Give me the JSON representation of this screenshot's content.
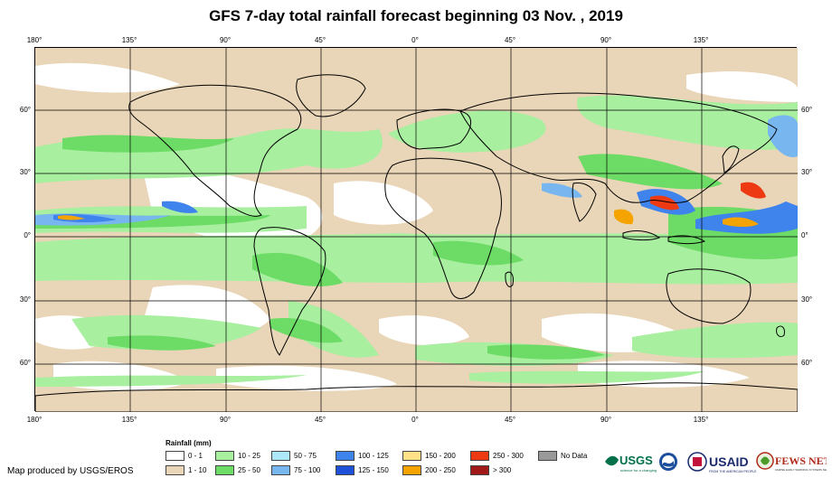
{
  "title": "GFS 7-day total rainfall forecast beginning 03 Nov. , 2019",
  "map": {
    "lon_labels_top": [
      "180°",
      "135°",
      "90°",
      "45°",
      "0°",
      "45°",
      "90°",
      "135°"
    ],
    "lon_labels_bottom": [
      "180°",
      "135°",
      "90°",
      "45°",
      "0°",
      "45°",
      "90°",
      "135°"
    ],
    "lat_labels_left": [
      "60°",
      "30°",
      "0°",
      "30°",
      "60°"
    ],
    "lat_labels_right": [
      "60°",
      "30°",
      "0°",
      "30°",
      "60°"
    ]
  },
  "legend": {
    "title": "Rainfall (mm)",
    "items": [
      {
        "label": "0 - 1",
        "color": "#ffffff"
      },
      {
        "label": "1 - 10",
        "color": "#e9d5b7"
      },
      {
        "label": "10 - 25",
        "color": "#a8efa0"
      },
      {
        "label": "25 - 50",
        "color": "#6ddc66"
      },
      {
        "label": "50 - 75",
        "color": "#aee8f8"
      },
      {
        "label": "75 - 100",
        "color": "#78b6f0"
      },
      {
        "label": "100 - 125",
        "color": "#3f83ec"
      },
      {
        "label": "125 - 150",
        "color": "#1f50d8"
      },
      {
        "label": "150 - 200",
        "color": "#fde28a"
      },
      {
        "label": "200 - 250",
        "color": "#f5a300"
      },
      {
        "label": "250 - 300",
        "color": "#ee3a12"
      },
      {
        "label": "> 300",
        "color": "#a01818"
      },
      {
        "label": "No Data",
        "color": "#999999"
      }
    ]
  },
  "producer": "Map produced by USGS/EROS",
  "logos": {
    "usgs": "USGS",
    "usgs_tagline": "science for a changing world",
    "usaid": "USAID",
    "usaid_tagline": "FROM THE AMERICAN PEOPLE",
    "fews": "FEWS NET",
    "fews_tagline": "FAMINE EARLY WARNING SYSTEMS NETWORK"
  }
}
